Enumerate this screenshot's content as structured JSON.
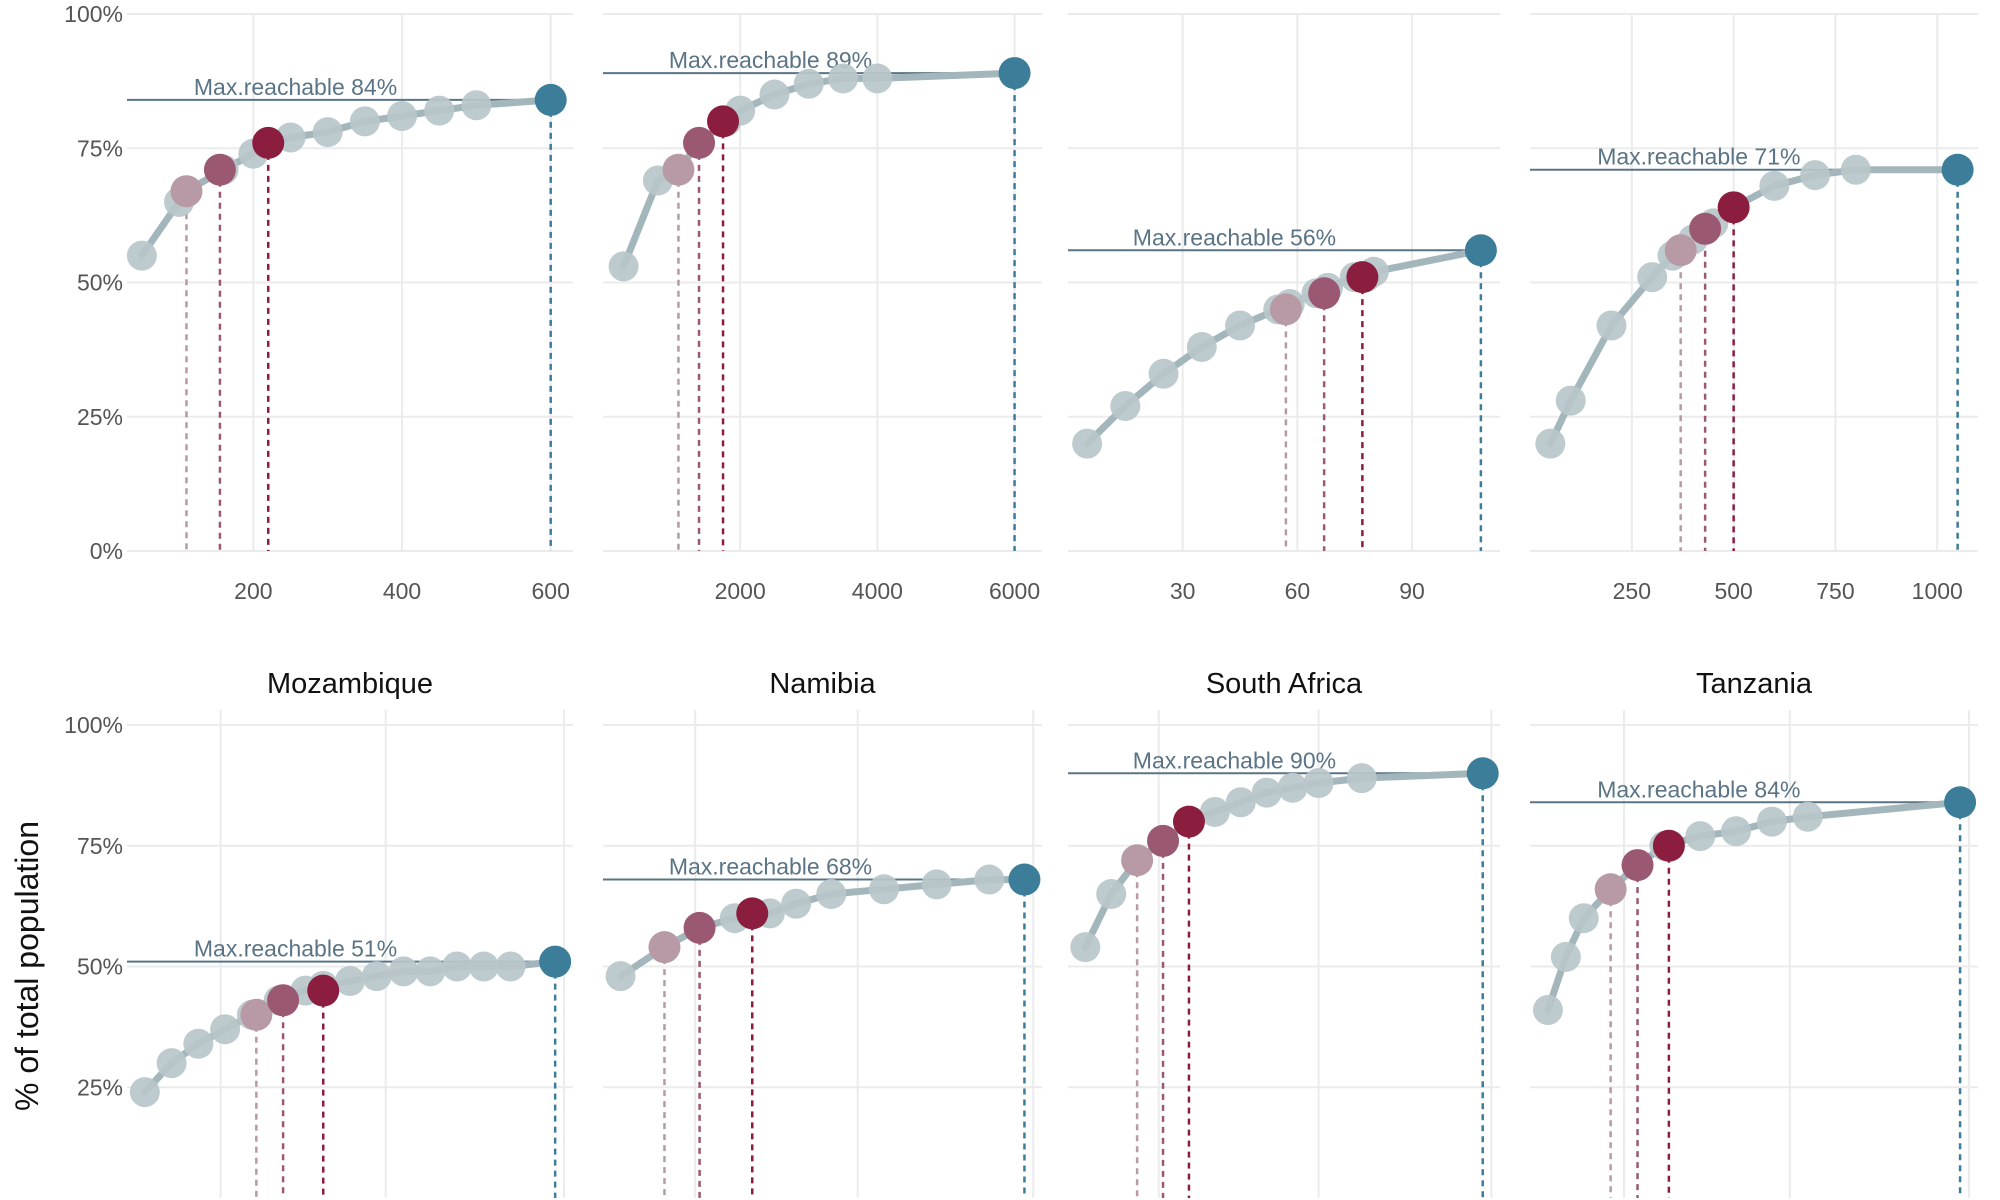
{
  "figure": {
    "ylabel": "% of total population",
    "yticks": [
      0,
      25,
      50,
      75,
      100
    ],
    "ytick_labels": [
      "0%",
      "25%",
      "50%",
      "75%",
      "100%"
    ],
    "colors": {
      "curve": "#a3b6bb",
      "point": "#b9c7ca",
      "max_point": "#3c7d99",
      "highlight_light": "#b79aa5",
      "highlight_mid": "#9a5873",
      "highlight_dark": "#8b1d3f",
      "grid": "#ebebeb",
      "max_line": "#5a7486"
    }
  },
  "chart_data": [
    {
      "type": "line",
      "title": "",
      "xlim": [
        30,
        630
      ],
      "ylim": [
        0,
        100
      ],
      "xticks": [
        200,
        400,
        600
      ],
      "xtick_labels": [
        "200",
        "400",
        "600"
      ],
      "x": [
        50,
        100,
        110,
        160,
        200,
        220,
        250,
        300,
        350,
        400,
        450,
        500,
        600
      ],
      "y": [
        55,
        65,
        67,
        71,
        74,
        76,
        77,
        78,
        80,
        81,
        82,
        83,
        84
      ],
      "highlights": [
        {
          "x": 110,
          "y": 67,
          "shade": "light"
        },
        {
          "x": 155,
          "y": 71,
          "shade": "mid"
        },
        {
          "x": 220,
          "y": 76,
          "shade": "dark"
        }
      ],
      "max_point": {
        "x": 600,
        "y": 84
      },
      "max_reachable": 84,
      "annotation": "Max.reachable 84%"
    },
    {
      "type": "line",
      "title": "",
      "xlim": [
        0,
        6400
      ],
      "ylim": [
        0,
        100
      ],
      "xticks": [
        2000,
        4000,
        6000
      ],
      "xtick_labels": [
        "2000",
        "4000",
        "6000"
      ],
      "x": [
        300,
        800,
        1100,
        1400,
        1800,
        2000,
        2500,
        3000,
        3500,
        4000,
        6000
      ],
      "y": [
        53,
        69,
        71,
        76,
        80,
        82,
        85,
        87,
        88,
        88,
        89
      ],
      "highlights": [
        {
          "x": 1100,
          "y": 71,
          "shade": "light"
        },
        {
          "x": 1400,
          "y": 76,
          "shade": "mid"
        },
        {
          "x": 1750,
          "y": 80,
          "shade": "dark"
        }
      ],
      "max_point": {
        "x": 6000,
        "y": 89
      },
      "max_reachable": 89,
      "annotation": "Max.reachable 89%"
    },
    {
      "type": "line",
      "title": "",
      "xlim": [
        0,
        113
      ],
      "ylim": [
        0,
        100
      ],
      "xticks": [
        30,
        60,
        90
      ],
      "xtick_labels": [
        "30",
        "60",
        "90"
      ],
      "x": [
        5,
        15,
        25,
        35,
        45,
        55,
        58,
        65,
        68,
        75,
        78,
        80,
        108
      ],
      "y": [
        20,
        27,
        33,
        38,
        42,
        45,
        46,
        48,
        49,
        51,
        51,
        52,
        56
      ],
      "highlights": [
        {
          "x": 57,
          "y": 45,
          "shade": "light"
        },
        {
          "x": 67,
          "y": 48,
          "shade": "mid"
        },
        {
          "x": 77,
          "y": 51,
          "shade": "dark"
        }
      ],
      "max_point": {
        "x": 108,
        "y": 56
      },
      "max_reachable": 56,
      "annotation": "Max.reachable 56%"
    },
    {
      "type": "line",
      "title": "",
      "xlim": [
        0,
        1100
      ],
      "ylim": [
        0,
        100
      ],
      "xticks": [
        250,
        500,
        750,
        1000
      ],
      "xtick_labels": [
        "250",
        "500",
        "750",
        "1000"
      ],
      "x": [
        50,
        100,
        200,
        300,
        350,
        400,
        450,
        500,
        600,
        700,
        800,
        1050
      ],
      "y": [
        20,
        28,
        42,
        51,
        55,
        58,
        61,
        64,
        68,
        70,
        71,
        71
      ],
      "highlights": [
        {
          "x": 370,
          "y": 56,
          "shade": "light"
        },
        {
          "x": 430,
          "y": 60,
          "shade": "mid"
        },
        {
          "x": 500,
          "y": 64,
          "shade": "dark"
        }
      ],
      "max_point": {
        "x": 1050,
        "y": 71
      },
      "max_reachable": 71,
      "annotation": "Max.reachable 71%"
    },
    {
      "type": "line",
      "title": "Mozambique",
      "xlim": [
        0,
        100
      ],
      "ylim": [
        0,
        100
      ],
      "xticks": [],
      "xtick_labels": [],
      "x": [
        4,
        10,
        16,
        22,
        28,
        34,
        40,
        44,
        50,
        56,
        62,
        68,
        74,
        80,
        86,
        96
      ],
      "y": [
        24,
        30,
        34,
        37,
        40,
        43,
        45,
        46,
        47,
        48,
        49,
        49,
        50,
        50,
        50,
        51
      ],
      "highlights": [
        {
          "x": 29,
          "y": 40,
          "shade": "light"
        },
        {
          "x": 35,
          "y": 43,
          "shade": "mid"
        },
        {
          "x": 44,
          "y": 45,
          "shade": "dark"
        }
      ],
      "max_point": {
        "x": 96,
        "y": 51
      },
      "max_reachable": 51,
      "annotation": "Max.reachable 51%"
    },
    {
      "type": "line",
      "title": "Namibia",
      "xlim": [
        0,
        100
      ],
      "ylim": [
        0,
        100
      ],
      "xticks": [],
      "xtick_labels": [],
      "x": [
        4,
        14,
        22,
        30,
        38,
        44,
        52,
        64,
        76,
        88,
        96
      ],
      "y": [
        48,
        54,
        58,
        60,
        61,
        63,
        65,
        66,
        67,
        68,
        68
      ],
      "highlights": [
        {
          "x": 14,
          "y": 54,
          "shade": "light"
        },
        {
          "x": 22,
          "y": 58,
          "shade": "mid"
        },
        {
          "x": 34,
          "y": 61,
          "shade": "dark"
        }
      ],
      "max_point": {
        "x": 96,
        "y": 68
      },
      "max_reachable": 68,
      "annotation": "Max.reachable 68%"
    },
    {
      "type": "line",
      "title": "South Africa",
      "xlim": [
        0,
        100
      ],
      "ylim": [
        0,
        100
      ],
      "xticks": [],
      "xtick_labels": [],
      "x": [
        4,
        10,
        16,
        22,
        28,
        34,
        40,
        46,
        52,
        58,
        68,
        96
      ],
      "y": [
        54,
        65,
        72,
        76,
        80,
        82,
        84,
        86,
        87,
        88,
        89,
        90
      ],
      "highlights": [
        {
          "x": 16,
          "y": 72,
          "shade": "light"
        },
        {
          "x": 22,
          "y": 76,
          "shade": "mid"
        },
        {
          "x": 28,
          "y": 80,
          "shade": "dark"
        }
      ],
      "max_point": {
        "x": 96,
        "y": 90
      },
      "max_reachable": 90,
      "annotation": "Max.reachable 90%"
    },
    {
      "type": "line",
      "title": "Tanzania",
      "xlim": [
        0,
        100
      ],
      "ylim": [
        0,
        100
      ],
      "xticks": [],
      "xtick_labels": [],
      "x": [
        4,
        8,
        12,
        18,
        24,
        30,
        38,
        46,
        54,
        62,
        96
      ],
      "y": [
        41,
        52,
        60,
        66,
        71,
        75,
        77,
        78,
        80,
        81,
        84
      ],
      "highlights": [
        {
          "x": 18,
          "y": 66,
          "shade": "light"
        },
        {
          "x": 24,
          "y": 71,
          "shade": "mid"
        },
        {
          "x": 31,
          "y": 75,
          "shade": "dark"
        }
      ],
      "max_point": {
        "x": 96,
        "y": 84
      },
      "max_reachable": 84,
      "annotation": "Max.reachable 84%"
    }
  ]
}
